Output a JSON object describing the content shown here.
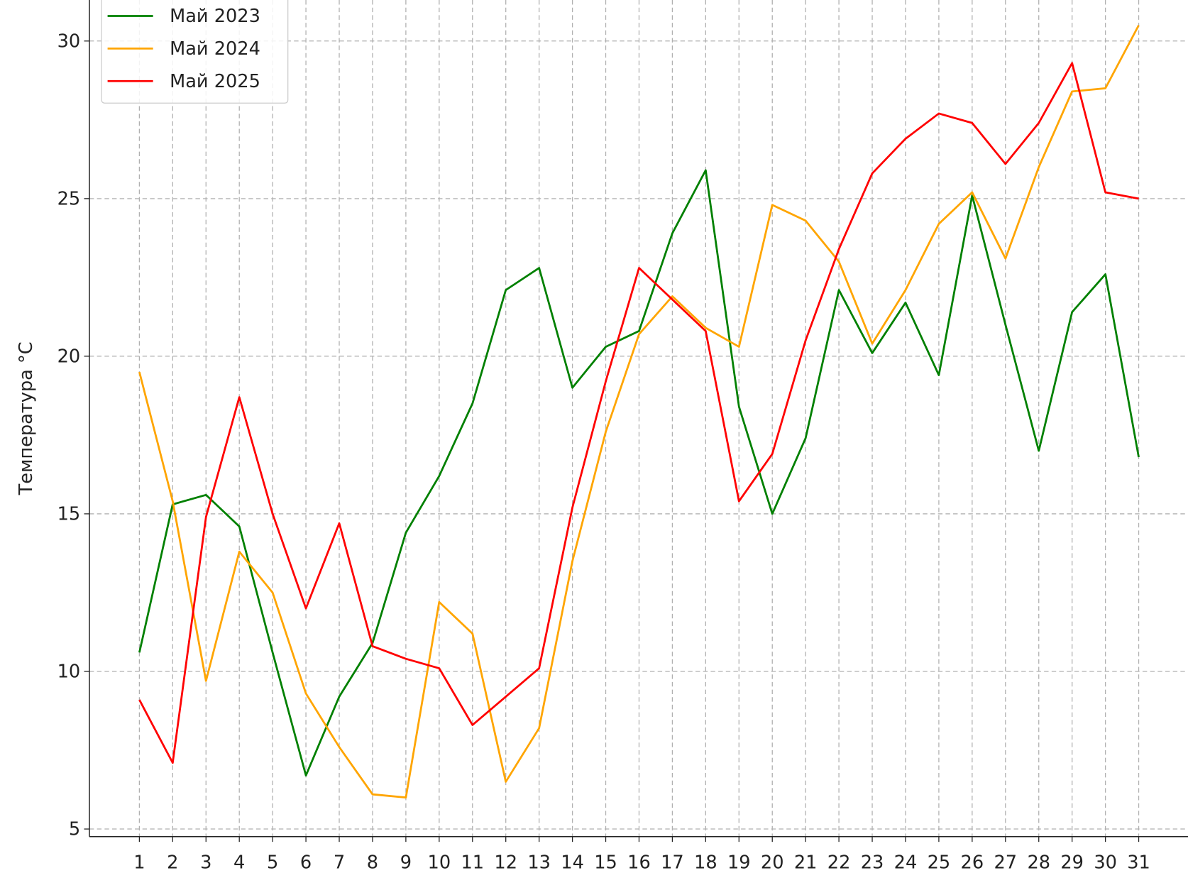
{
  "chart_data": {
    "type": "line",
    "y_label": "Температура °C",
    "x": [
      1,
      2,
      3,
      4,
      5,
      6,
      7,
      8,
      9,
      10,
      11,
      12,
      13,
      14,
      15,
      16,
      17,
      18,
      19,
      20,
      21,
      22,
      23,
      24,
      25,
      26,
      27,
      28,
      29,
      30,
      31
    ],
    "xlim": [
      -0.5,
      32.5
    ],
    "xticks": [
      1,
      2,
      3,
      4,
      5,
      6,
      7,
      8,
      9,
      10,
      11,
      12,
      13,
      14,
      15,
      16,
      17,
      18,
      19,
      20,
      21,
      22,
      23,
      24,
      25,
      26,
      27,
      28,
      29,
      30,
      31
    ],
    "ylim": [
      4.76,
      31.3
    ],
    "yticks": [
      5,
      10,
      15,
      20,
      25,
      30
    ],
    "grid": true,
    "legend": "upper-left",
    "series": [
      {
        "name": "Май 2023",
        "color": "#008000",
        "values": [
          10.6,
          15.3,
          15.6,
          14.6,
          10.6,
          6.7,
          9.2,
          10.9,
          14.4,
          16.2,
          18.5,
          22.1,
          22.8,
          19.0,
          20.3,
          20.8,
          23.9,
          25.9,
          18.4,
          15.0,
          17.4,
          22.1,
          20.1,
          21.7,
          19.4,
          25.1,
          21.0,
          17.0,
          21.4,
          22.6,
          16.8
        ]
      },
      {
        "name": "Май 2024",
        "color": "#ffa500",
        "values": [
          19.5,
          15.4,
          9.7,
          13.8,
          12.5,
          9.3,
          7.6,
          6.1,
          6.0,
          12.2,
          11.2,
          6.5,
          8.2,
          13.5,
          17.6,
          20.7,
          21.9,
          20.9,
          20.3,
          24.8,
          24.3,
          23.0,
          20.4,
          22.1,
          24.2,
          25.2,
          23.1,
          26.0,
          28.4,
          28.5,
          30.5
        ]
      },
      {
        "name": "Май 2025",
        "color": "#ff0000",
        "values": [
          9.1,
          7.1,
          14.9,
          18.7,
          15.0,
          12.0,
          14.7,
          10.8,
          10.4,
          10.1,
          8.3,
          9.2,
          10.1,
          15.2,
          19.2,
          22.8,
          21.8,
          20.8,
          15.4,
          16.9,
          20.5,
          23.4,
          25.8,
          26.9,
          27.7,
          27.4,
          26.1,
          27.4,
          29.3,
          25.2,
          25.0
        ]
      }
    ]
  }
}
